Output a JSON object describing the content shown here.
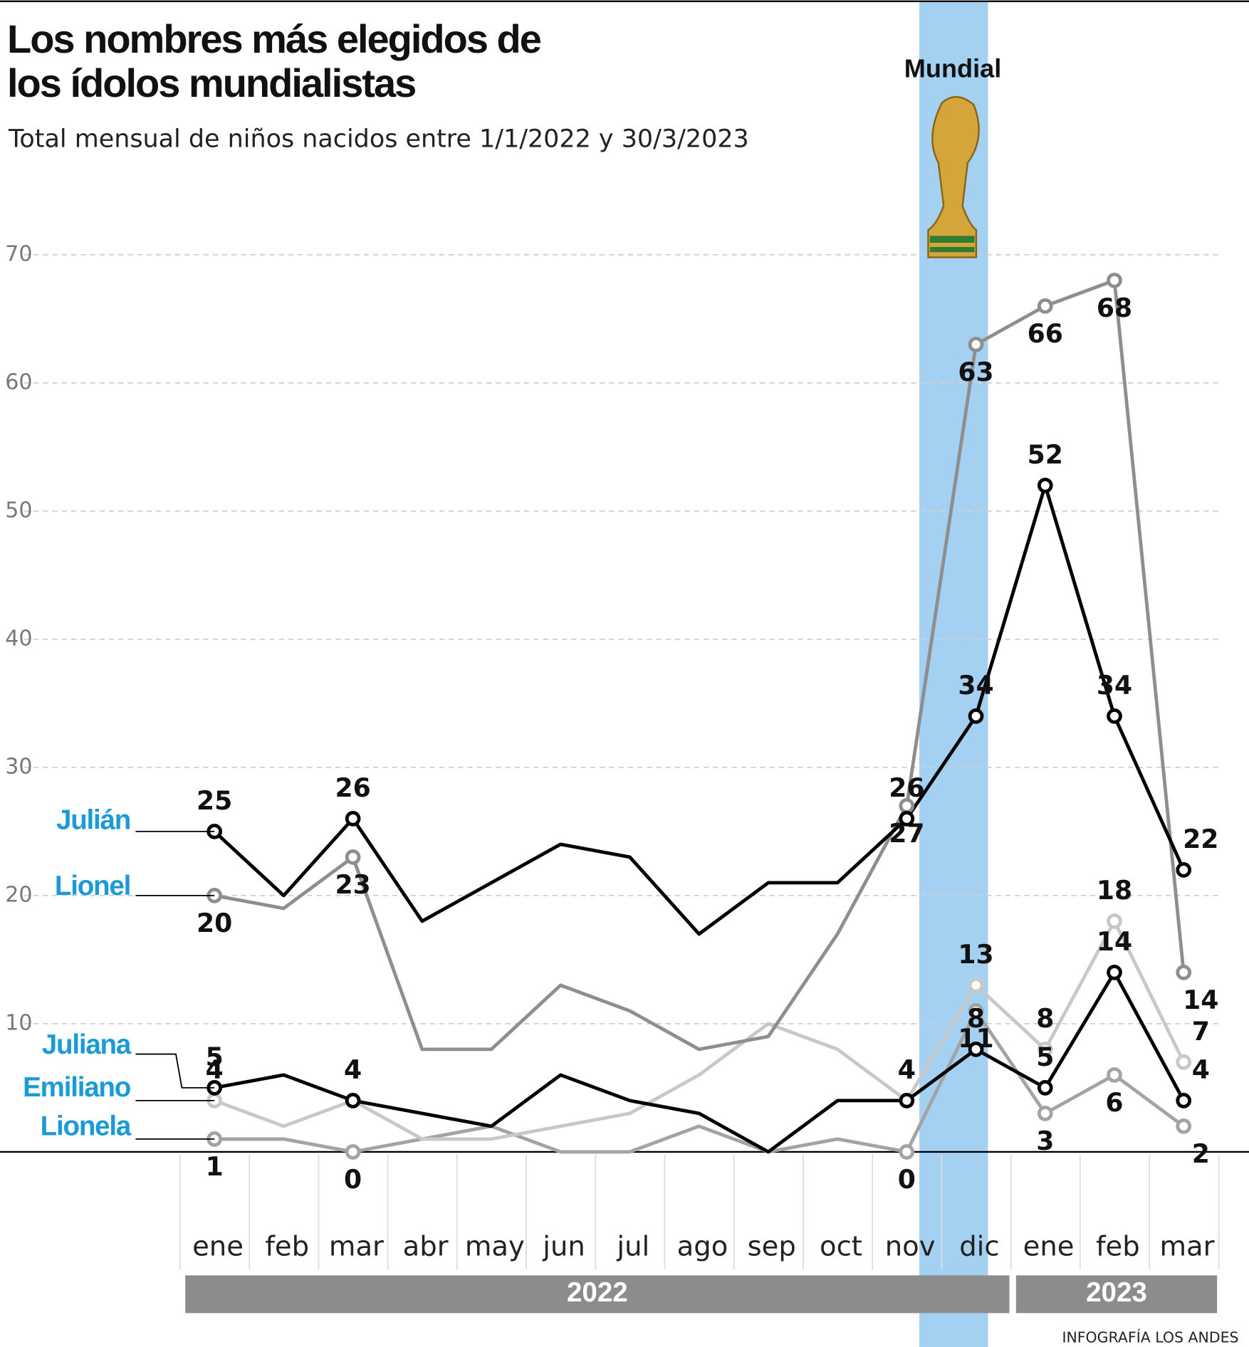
{
  "chart_data": {
    "type": "line",
    "title": "Los nombres más elegidos de los ídolos mundialistas",
    "subtitle": "Total mensual de niños nacidos entre 1/1/2022 y 30/3/2023",
    "categories": [
      "ene",
      "feb",
      "mar",
      "abr",
      "may",
      "jun",
      "jul",
      "ago",
      "sep",
      "oct",
      "nov",
      "dic",
      "ene",
      "feb",
      "mar"
    ],
    "x_groups": [
      {
        "label": "2022",
        "count": 12
      },
      {
        "label": "2023",
        "count": 3
      }
    ],
    "highlight": {
      "label": "Mundial",
      "category": "dic"
    },
    "series": [
      {
        "name": "Julián",
        "color": "#000000",
        "values": [
          25,
          20,
          26,
          18,
          21,
          24,
          23,
          17,
          21,
          21,
          26,
          34,
          52,
          34,
          22
        ]
      },
      {
        "name": "Lionel",
        "color": "#8e8e8e",
        "values": [
          20,
          19,
          23,
          8,
          8,
          13,
          11,
          8,
          9,
          17,
          27,
          63,
          66,
          68,
          14
        ]
      },
      {
        "name": "Juliana",
        "color": "#000000",
        "values": [
          5,
          6,
          4,
          3,
          2,
          6,
          4,
          3,
          0,
          4,
          4,
          8,
          5,
          14,
          4
        ]
      },
      {
        "name": "Emiliano",
        "color": "#c8c8c8",
        "values": [
          4,
          2,
          4,
          1,
          1,
          2,
          3,
          6,
          10,
          8,
          4,
          13,
          8,
          18,
          7
        ]
      },
      {
        "name": "Lionela",
        "color": "#a3a3a3",
        "values": [
          1,
          1,
          0,
          1,
          2,
          0,
          0,
          2,
          0,
          1,
          0,
          11,
          3,
          6,
          2
        ]
      }
    ],
    "ylim": [
      0,
      70
    ],
    "yticks": [
      10,
      20,
      30,
      40,
      50,
      60,
      70
    ],
    "grid": true,
    "source": "INFOGRAFÍA LOS ANDES"
  }
}
